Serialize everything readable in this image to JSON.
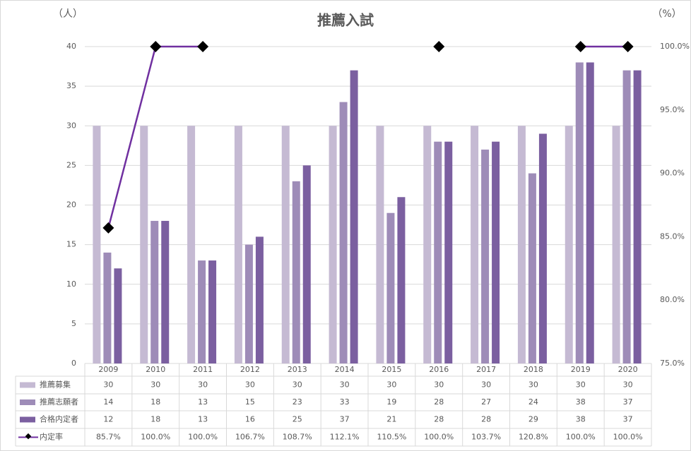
{
  "chart_data": {
    "type": "bar-line",
    "title": "推薦入試",
    "y_label": "（人）",
    "y2_label": "（%）",
    "categories": [
      "2009",
      "2010",
      "2011",
      "2012",
      "2013",
      "2014",
      "2015",
      "2016",
      "2017",
      "2018",
      "2019",
      "2020"
    ],
    "series": [
      {
        "name": "推薦募集",
        "color": "#c5bad3",
        "type": "bar",
        "values": [
          30,
          30,
          30,
          30,
          30,
          30,
          30,
          30,
          30,
          30,
          30,
          30
        ]
      },
      {
        "name": "推薦志願者",
        "color": "#9e8cb8",
        "type": "bar",
        "values": [
          14,
          18,
          13,
          15,
          23,
          33,
          19,
          28,
          27,
          24,
          38,
          37
        ]
      },
      {
        "name": "合格内定者",
        "color": "#7b5fa0",
        "type": "bar",
        "values": [
          12,
          18,
          13,
          16,
          25,
          37,
          21,
          28,
          28,
          29,
          38,
          37
        ]
      },
      {
        "name": "内定率",
        "color": "#7030a0",
        "type": "line",
        "axis": "y2",
        "values": [
          85.7,
          100,
          100,
          106.7,
          108.7,
          112.1,
          110.5,
          100,
          103.7,
          120.8,
          100,
          100
        ],
        "value_labels": [
          "85.7%",
          "100.0%",
          "100.0%",
          "106.7%",
          "108.7%",
          "112.1%",
          "110.5%",
          "100.0%",
          "103.7%",
          "120.8%",
          "100.0%",
          "100.0%"
        ]
      }
    ],
    "ylim": [
      0,
      40
    ],
    "yticks": [
      0,
      5,
      10,
      15,
      20,
      25,
      30,
      35,
      40
    ],
    "y2lim": [
      75,
      100
    ],
    "y2ticks": [
      {
        "value": 75,
        "label": "75.0%"
      },
      {
        "value": 80,
        "label": "80.0%"
      },
      {
        "value": 85,
        "label": "85.0%"
      },
      {
        "value": 90,
        "label": "90.0%"
      },
      {
        "value": 95,
        "label": "95.0%"
      },
      {
        "value": 100,
        "label": "100.0%"
      }
    ],
    "grid": true
  }
}
